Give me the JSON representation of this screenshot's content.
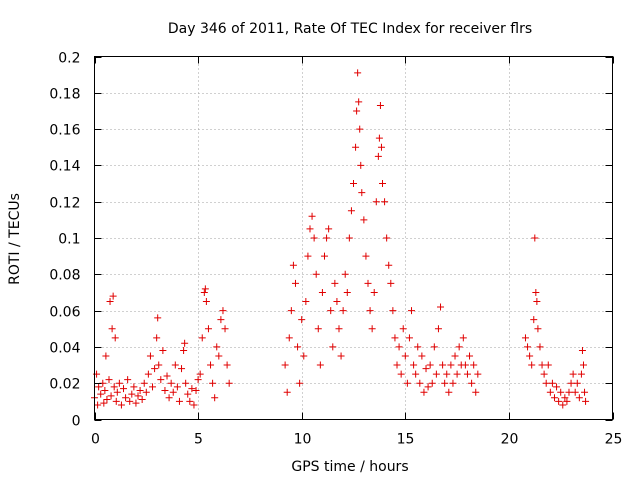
{
  "chart_data": {
    "type": "scatter",
    "title": "Day 346 of 2011, Rate Of TEC Index for receiver flrs",
    "xlabel": "GPS time / hours",
    "ylabel": "ROTI / TECUs",
    "xlim": [
      0,
      25
    ],
    "ylim": [
      0,
      0.2
    ],
    "xticks": [
      0,
      5,
      10,
      15,
      20,
      25
    ],
    "xtick_labels": [
      "0",
      "5",
      "10",
      "15",
      "20",
      "25"
    ],
    "yticks": [
      0,
      0.02,
      0.04,
      0.06,
      0.08,
      0.1,
      0.12,
      0.14,
      0.16,
      0.18,
      0.2
    ],
    "ytick_labels": [
      "0",
      "0.02",
      "0.04",
      "0.06",
      "0.08",
      "0.1",
      "0.12",
      "0.14",
      "0.16",
      "0.18",
      "0.2"
    ],
    "grid": true,
    "marker": "+",
    "marker_color": "#e00000",
    "series": [
      {
        "name": "ROTI",
        "points": [
          [
            0.0,
            0.012
          ],
          [
            0.1,
            0.025
          ],
          [
            0.15,
            0.008
          ],
          [
            0.2,
            0.018
          ],
          [
            0.3,
            0.014
          ],
          [
            0.4,
            0.02
          ],
          [
            0.45,
            0.009
          ],
          [
            0.5,
            0.016
          ],
          [
            0.55,
            0.035
          ],
          [
            0.6,
            0.011
          ],
          [
            0.7,
            0.022
          ],
          [
            0.75,
            0.065
          ],
          [
            0.8,
            0.013
          ],
          [
            0.85,
            0.05
          ],
          [
            0.9,
            0.068
          ],
          [
            0.95,
            0.018
          ],
          [
            1.0,
            0.045
          ],
          [
            1.05,
            0.01
          ],
          [
            1.1,
            0.015
          ],
          [
            1.2,
            0.02
          ],
          [
            1.3,
            0.008
          ],
          [
            1.4,
            0.017
          ],
          [
            1.5,
            0.012
          ],
          [
            1.6,
            0.022
          ],
          [
            1.7,
            0.01
          ],
          [
            1.8,
            0.014
          ],
          [
            1.9,
            0.018
          ],
          [
            2.0,
            0.009
          ],
          [
            2.1,
            0.013
          ],
          [
            2.2,
            0.016
          ],
          [
            2.3,
            0.011
          ],
          [
            2.4,
            0.02
          ],
          [
            2.5,
            0.015
          ],
          [
            2.6,
            0.025
          ],
          [
            2.7,
            0.035
          ],
          [
            2.8,
            0.018
          ],
          [
            2.9,
            0.028
          ],
          [
            3.0,
            0.045
          ],
          [
            3.05,
            0.056
          ],
          [
            3.1,
            0.03
          ],
          [
            3.2,
            0.022
          ],
          [
            3.3,
            0.038
          ],
          [
            3.4,
            0.016
          ],
          [
            3.5,
            0.024
          ],
          [
            3.6,
            0.012
          ],
          [
            3.7,
            0.02
          ],
          [
            3.8,
            0.015
          ],
          [
            3.9,
            0.03
          ],
          [
            4.0,
            0.018
          ],
          [
            4.1,
            0.01
          ],
          [
            4.2,
            0.028
          ],
          [
            4.3,
            0.038
          ],
          [
            4.35,
            0.042
          ],
          [
            4.4,
            0.02
          ],
          [
            4.5,
            0.014
          ],
          [
            4.6,
            0.01
          ],
          [
            4.7,
            0.017
          ],
          [
            4.8,
            0.008
          ],
          [
            4.9,
            0.016
          ],
          [
            5.0,
            0.022
          ],
          [
            5.1,
            0.025
          ],
          [
            5.2,
            0.045
          ],
          [
            5.3,
            0.07
          ],
          [
            5.35,
            0.072
          ],
          [
            5.4,
            0.065
          ],
          [
            5.5,
            0.05
          ],
          [
            5.6,
            0.03
          ],
          [
            5.7,
            0.02
          ],
          [
            5.8,
            0.012
          ],
          [
            5.9,
            0.04
          ],
          [
            6.0,
            0.035
          ],
          [
            6.1,
            0.055
          ],
          [
            6.2,
            0.06
          ],
          [
            6.3,
            0.05
          ],
          [
            6.4,
            0.03
          ],
          [
            6.5,
            0.02
          ],
          [
            9.2,
            0.03
          ],
          [
            9.3,
            0.015
          ],
          [
            9.4,
            0.045
          ],
          [
            9.5,
            0.06
          ],
          [
            9.6,
            0.085
          ],
          [
            9.7,
            0.075
          ],
          [
            9.8,
            0.04
          ],
          [
            9.9,
            0.02
          ],
          [
            10.0,
            0.055
          ],
          [
            10.1,
            0.035
          ],
          [
            10.2,
            0.065
          ],
          [
            10.3,
            0.09
          ],
          [
            10.4,
            0.105
          ],
          [
            10.5,
            0.112
          ],
          [
            10.6,
            0.1
          ],
          [
            10.7,
            0.08
          ],
          [
            10.8,
            0.05
          ],
          [
            10.9,
            0.03
          ],
          [
            11.0,
            0.07
          ],
          [
            11.1,
            0.09
          ],
          [
            11.2,
            0.1
          ],
          [
            11.3,
            0.105
          ],
          [
            11.4,
            0.06
          ],
          [
            11.5,
            0.04
          ],
          [
            11.6,
            0.075
          ],
          [
            11.7,
            0.065
          ],
          [
            11.8,
            0.05
          ],
          [
            11.9,
            0.035
          ],
          [
            12.0,
            0.06
          ],
          [
            12.1,
            0.08
          ],
          [
            12.2,
            0.07
          ],
          [
            12.3,
            0.1
          ],
          [
            12.4,
            0.115
          ],
          [
            12.5,
            0.13
          ],
          [
            12.6,
            0.15
          ],
          [
            12.65,
            0.17
          ],
          [
            12.7,
            0.191
          ],
          [
            12.75,
            0.175
          ],
          [
            12.8,
            0.16
          ],
          [
            12.85,
            0.14
          ],
          [
            12.9,
            0.125
          ],
          [
            13.0,
            0.11
          ],
          [
            13.1,
            0.09
          ],
          [
            13.2,
            0.075
          ],
          [
            13.3,
            0.06
          ],
          [
            13.4,
            0.05
          ],
          [
            13.5,
            0.07
          ],
          [
            13.6,
            0.12
          ],
          [
            13.7,
            0.145
          ],
          [
            13.75,
            0.155
          ],
          [
            13.8,
            0.173
          ],
          [
            13.85,
            0.15
          ],
          [
            13.9,
            0.13
          ],
          [
            14.0,
            0.12
          ],
          [
            14.1,
            0.1
          ],
          [
            14.2,
            0.085
          ],
          [
            14.3,
            0.075
          ],
          [
            14.4,
            0.06
          ],
          [
            14.5,
            0.045
          ],
          [
            14.6,
            0.03
          ],
          [
            14.7,
            0.04
          ],
          [
            14.8,
            0.025
          ],
          [
            14.9,
            0.05
          ],
          [
            15.0,
            0.035
          ],
          [
            15.1,
            0.02
          ],
          [
            15.2,
            0.045
          ],
          [
            15.3,
            0.06
          ],
          [
            15.4,
            0.03
          ],
          [
            15.5,
            0.025
          ],
          [
            15.6,
            0.04
          ],
          [
            15.7,
            0.02
          ],
          [
            15.8,
            0.035
          ],
          [
            15.9,
            0.015
          ],
          [
            16.0,
            0.028
          ],
          [
            16.1,
            0.018
          ],
          [
            16.2,
            0.03
          ],
          [
            16.3,
            0.02
          ],
          [
            16.4,
            0.04
          ],
          [
            16.5,
            0.025
          ],
          [
            16.6,
            0.05
          ],
          [
            16.7,
            0.062
          ],
          [
            16.8,
            0.03
          ],
          [
            16.9,
            0.02
          ],
          [
            17.0,
            0.025
          ],
          [
            17.1,
            0.015
          ],
          [
            17.2,
            0.03
          ],
          [
            17.3,
            0.02
          ],
          [
            17.4,
            0.035
          ],
          [
            17.5,
            0.025
          ],
          [
            17.6,
            0.04
          ],
          [
            17.7,
            0.03
          ],
          [
            17.8,
            0.045
          ],
          [
            17.9,
            0.03
          ],
          [
            18.0,
            0.025
          ],
          [
            18.1,
            0.035
          ],
          [
            18.2,
            0.02
          ],
          [
            18.3,
            0.03
          ],
          [
            18.4,
            0.015
          ],
          [
            18.5,
            0.025
          ],
          [
            20.8,
            0.045
          ],
          [
            20.9,
            0.04
          ],
          [
            21.0,
            0.035
          ],
          [
            21.1,
            0.03
          ],
          [
            21.2,
            0.055
          ],
          [
            21.25,
            0.1
          ],
          [
            21.3,
            0.07
          ],
          [
            21.35,
            0.065
          ],
          [
            21.4,
            0.05
          ],
          [
            21.5,
            0.04
          ],
          [
            21.6,
            0.03
          ],
          [
            21.7,
            0.025
          ],
          [
            21.8,
            0.02
          ],
          [
            21.9,
            0.03
          ],
          [
            22.0,
            0.015
          ],
          [
            22.1,
            0.02
          ],
          [
            22.2,
            0.012
          ],
          [
            22.3,
            0.018
          ],
          [
            22.4,
            0.01
          ],
          [
            22.5,
            0.015
          ],
          [
            22.6,
            0.008
          ],
          [
            22.7,
            0.012
          ],
          [
            22.8,
            0.01
          ],
          [
            22.9,
            0.015
          ],
          [
            23.0,
            0.02
          ],
          [
            23.1,
            0.025
          ],
          [
            23.2,
            0.015
          ],
          [
            23.3,
            0.02
          ],
          [
            23.4,
            0.012
          ],
          [
            23.5,
            0.025
          ],
          [
            23.55,
            0.038
          ],
          [
            23.6,
            0.03
          ],
          [
            23.65,
            0.015
          ],
          [
            23.7,
            0.01
          ]
        ]
      }
    ]
  }
}
